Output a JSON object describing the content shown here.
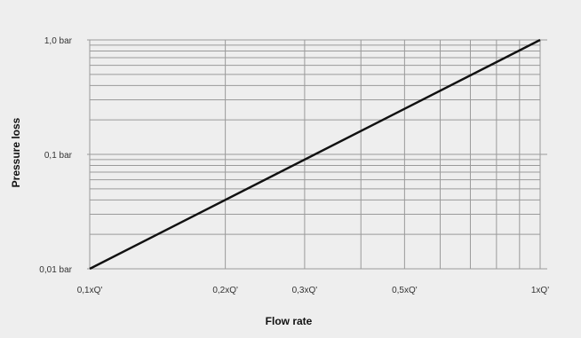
{
  "chart_data": {
    "type": "line",
    "x_scale": "log",
    "y_scale": "log",
    "xlabel": "Flow rate",
    "ylabel": "Pressure loss",
    "x_ticks": [
      {
        "value": 0.1,
        "label": "0,1xQ'"
      },
      {
        "value": 0.2,
        "label": "0,2xQ'"
      },
      {
        "value": 0.3,
        "label": "0,3xQ'"
      },
      {
        "value": 0.5,
        "label": "0,5xQ'"
      },
      {
        "value": 1.0,
        "label": "1xQ'"
      }
    ],
    "y_ticks": [
      {
        "value": 0.01,
        "label": "0,01 bar"
      },
      {
        "value": 0.1,
        "label": "0,1 bar"
      },
      {
        "value": 1.0,
        "label": "1,0 bar"
      }
    ],
    "xlim": [
      0.1,
      1.0
    ],
    "ylim": [
      0.01,
      1.0
    ],
    "grid": true,
    "series": [
      {
        "x": [
          0.1,
          1.0
        ],
        "y": [
          0.01,
          1.0
        ],
        "color": "#111111"
      }
    ],
    "colors": {
      "background": "#eeeeee",
      "grid": "#9a9a9a",
      "line": "#111111"
    }
  }
}
